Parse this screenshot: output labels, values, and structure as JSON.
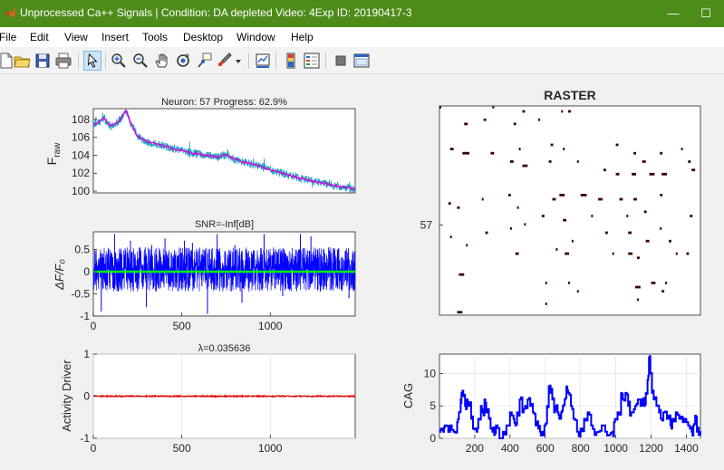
{
  "window": {
    "title": "Unprocessed Ca++ Signals | Condition: DA depleted Video: 4Exp ID: 20190417-3",
    "controls": {
      "minimize": "—",
      "maximize": "☐",
      "close": "✕"
    }
  },
  "menu": {
    "items": [
      "File",
      "Edit",
      "View",
      "Insert",
      "Tools",
      "Desktop",
      "Window",
      "Help"
    ]
  },
  "toolbar": {
    "buttons": [
      "new-figure-icon",
      "open-file-icon",
      "save-icon",
      "print-icon",
      "pointer-icon",
      "zoom-in-icon",
      "zoom-out-icon",
      "pan-icon",
      "rotate-3d-icon",
      "data-cursor-icon",
      "brush-icon",
      "brush-dropdown-icon",
      "link-plot-icon",
      "colorbar-icon",
      "legend-icon",
      "hide-plot-tools-icon",
      "show-plot-tools-icon"
    ]
  },
  "colors": {
    "titlebar": "#4d8c19",
    "raw_trace": "#1f9fbf",
    "fit_trace": "#e000e0",
    "dff_trace": "#0000ff",
    "baseline": "#00ff00",
    "driver": "#ff0000",
    "cag": "#0000ff",
    "raster_mark": "#3b0000"
  },
  "chart_data": [
    {
      "type": "line",
      "title": "Neuron: 57 Progress: 62.9%",
      "ylabel": "F_raw",
      "ylim": [
        99.8,
        109.2
      ],
      "xlim": [
        0,
        1480
      ],
      "yticks": [
        100,
        102,
        104,
        106,
        108
      ],
      "series": [
        {
          "values": [
            [
              0,
              107.4
            ],
            [
              60,
              108.1
            ],
            [
              100,
              107.2
            ],
            [
              150,
              107.9
            ],
            [
              185,
              109.0
            ],
            [
              215,
              107.4
            ],
            [
              250,
              106.1
            ],
            [
              300,
              105.5
            ],
            [
              400,
              105.0
            ],
            [
              500,
              104.5
            ],
            [
              600,
              104.1
            ],
            [
              700,
              103.8
            ],
            [
              750,
              104.1
            ],
            [
              800,
              103.5
            ],
            [
              900,
              103.0
            ],
            [
              1000,
              102.4
            ],
            [
              1100,
              101.8
            ],
            [
              1200,
              101.3
            ],
            [
              1300,
              100.9
            ],
            [
              1400,
              100.5
            ],
            [
              1480,
              100.2
            ]
          ]
        }
      ]
    },
    {
      "type": "line",
      "title": "SNR=-Inf[dB]",
      "ylabel": "ΔF/F₀",
      "ylim": [
        -1.0,
        0.9
      ],
      "xlim": [
        0,
        1480
      ],
      "yticks": [
        0.5,
        0,
        -0.5,
        -1
      ],
      "ytick_labels": [
        "0.5",
        "0",
        "-0.5",
        "-1"
      ],
      "xticks": [
        0,
        500,
        1000
      ],
      "noise_range": [
        -0.45,
        0.55
      ],
      "spikes": [
        [
          45,
          -0.9
        ],
        [
          120,
          0.85
        ],
        [
          210,
          0.7
        ],
        [
          300,
          -0.8
        ],
        [
          330,
          0.6
        ],
        [
          405,
          0.75
        ],
        [
          515,
          0.7
        ],
        [
          560,
          0.65
        ],
        [
          620,
          0.5
        ],
        [
          645,
          -0.95
        ],
        [
          700,
          0.85
        ],
        [
          800,
          0.6
        ],
        [
          840,
          -0.7
        ],
        [
          965,
          0.85
        ],
        [
          1070,
          -0.55
        ],
        [
          1170,
          0.85
        ],
        [
          1230,
          0.8
        ],
        [
          1330,
          0.55
        ],
        [
          1380,
          0.5
        ],
        [
          1445,
          -0.6
        ]
      ]
    },
    {
      "type": "line",
      "title": "λ=0.035636",
      "ylabel": "Activity Driver",
      "ylim": [
        -1,
        1
      ],
      "xlim": [
        0,
        1480
      ],
      "yticks": [
        1,
        0,
        -1
      ],
      "xticks": [
        0,
        500,
        1000
      ],
      "series": [
        {
          "values": [
            [
              0,
              0
            ],
            [
              1480,
              0
            ]
          ]
        }
      ]
    },
    {
      "type": "scatter",
      "title": "RASTER",
      "ytick_labels": [
        "57"
      ],
      "xlim": [
        0,
        1480
      ],
      "rows": 50,
      "marks": [
        [
          0,
          0,
          10
        ],
        [
          300,
          0,
          10
        ],
        [
          470,
          1,
          15
        ],
        [
          690,
          1,
          10
        ],
        [
          730,
          1,
          15
        ],
        [
          140,
          4,
          20
        ],
        [
          250,
          3,
          15
        ],
        [
          420,
          4,
          15
        ],
        [
          560,
          3,
          10
        ],
        [
          60,
          10,
          20
        ],
        [
          130,
          11,
          40
        ],
        [
          290,
          11,
          20
        ],
        [
          450,
          10,
          10
        ],
        [
          630,
          9,
          15
        ],
        [
          700,
          10,
          10
        ],
        [
          1000,
          9,
          15
        ],
        [
          1100,
          11,
          15
        ],
        [
          1250,
          11,
          15
        ],
        [
          1370,
          10,
          10
        ],
        [
          400,
          13,
          20
        ],
        [
          470,
          14,
          30
        ],
        [
          620,
          13,
          15
        ],
        [
          780,
          13,
          10
        ],
        [
          1150,
          13,
          20
        ],
        [
          1410,
          13,
          15
        ],
        [
          930,
          15,
          15
        ],
        [
          1000,
          16,
          20
        ],
        [
          1090,
          16,
          25
        ],
        [
          1190,
          16,
          30
        ],
        [
          1260,
          16,
          30
        ],
        [
          1430,
          15,
          20
        ],
        [
          50,
          23,
          15
        ],
        [
          100,
          24,
          15
        ],
        [
          390,
          21,
          15
        ],
        [
          640,
          22,
          20
        ],
        [
          680,
          21,
          30
        ],
        [
          800,
          21,
          35
        ],
        [
          900,
          22,
          25
        ],
        [
          1020,
          22,
          20
        ],
        [
          1100,
          22,
          20
        ],
        [
          240,
          22,
          10
        ],
        [
          1250,
          21,
          15
        ],
        [
          440,
          24,
          10
        ],
        [
          580,
          26,
          15
        ],
        [
          700,
          27,
          20
        ],
        [
          860,
          26,
          10
        ],
        [
          1060,
          26,
          10
        ],
        [
          1160,
          25,
          15
        ],
        [
          1420,
          26,
          15
        ],
        [
          60,
          31,
          10
        ],
        [
          150,
          33,
          10
        ],
        [
          260,
          30,
          15
        ],
        [
          400,
          29,
          10
        ],
        [
          480,
          28,
          10
        ],
        [
          750,
          32,
          10
        ],
        [
          940,
          30,
          15
        ],
        [
          1070,
          30,
          20
        ],
        [
          1170,
          32,
          20
        ],
        [
          1300,
          32,
          15
        ],
        [
          1250,
          29,
          10
        ],
        [
          430,
          35,
          20
        ],
        [
          660,
          34,
          10
        ],
        [
          710,
          35,
          25
        ],
        [
          980,
          35,
          10
        ],
        [
          1070,
          35,
          25
        ],
        [
          1400,
          35,
          15
        ],
        [
          1120,
          36,
          15
        ],
        [
          1340,
          35,
          10
        ],
        [
          110,
          40,
          30
        ],
        [
          600,
          42,
          10
        ],
        [
          730,
          42,
          10
        ],
        [
          1110,
          43,
          30
        ],
        [
          1200,
          42,
          25
        ],
        [
          1260,
          44,
          15
        ],
        [
          1280,
          42,
          10
        ],
        [
          100,
          49,
          30
        ],
        [
          600,
          47,
          10
        ],
        [
          780,
          44,
          10
        ],
        [
          1120,
          46,
          10
        ]
      ],
      "mark_x_scale": "frames"
    },
    {
      "type": "line",
      "title": "",
      "ylabel": "CAG",
      "ylim": [
        0,
        13
      ],
      "xlim": [
        0,
        1480
      ],
      "yticks": [
        0,
        5,
        10
      ],
      "xticks": [
        200,
        400,
        600,
        800,
        1000,
        1200,
        1400
      ],
      "series": [
        {
          "values": [
            [
              0,
              1
            ],
            [
              10,
              1.5
            ],
            [
              20,
              1
            ],
            [
              30,
              2
            ],
            [
              50,
              1
            ],
            [
              60,
              2
            ],
            [
              80,
              1
            ],
            [
              100,
              2.5
            ],
            [
              110,
              4
            ],
            [
              120,
              6
            ],
            [
              125,
              7
            ],
            [
              135,
              6.5
            ],
            [
              145,
              5
            ],
            [
              155,
              6
            ],
            [
              165,
              5
            ],
            [
              180,
              3
            ],
            [
              190,
              1.5
            ],
            [
              200,
              1.5
            ],
            [
              210,
              1
            ],
            [
              220,
              3
            ],
            [
              235,
              5
            ],
            [
              245,
              4
            ],
            [
              255,
              6
            ],
            [
              265,
              4
            ],
            [
              280,
              3
            ],
            [
              290,
              1.5
            ],
            [
              300,
              1
            ],
            [
              310,
              0.5
            ],
            [
              320,
              2
            ],
            [
              340,
              0
            ],
            [
              360,
              1
            ],
            [
              380,
              2
            ],
            [
              400,
              4
            ],
            [
              420,
              3
            ],
            [
              430,
              2
            ],
            [
              440,
              4
            ],
            [
              455,
              6
            ],
            [
              470,
              4
            ],
            [
              485,
              5
            ],
            [
              500,
              6
            ],
            [
              515,
              5
            ],
            [
              530,
              4
            ],
            [
              545,
              2
            ],
            [
              560,
              1.5
            ],
            [
              570,
              1
            ],
            [
              580,
              1
            ],
            [
              595,
              2
            ],
            [
              610,
              5
            ],
            [
              620,
              8
            ],
            [
              630,
              7
            ],
            [
              640,
              6
            ],
            [
              650,
              4
            ],
            [
              660,
              5
            ],
            [
              670,
              4
            ],
            [
              680,
              3
            ],
            [
              690,
              4
            ],
            [
              700,
              5
            ],
            [
              710,
              6
            ],
            [
              720,
              8
            ],
            [
              730,
              7
            ],
            [
              745,
              5
            ],
            [
              760,
              3
            ],
            [
              780,
              1
            ],
            [
              800,
              1.5
            ],
            [
              820,
              3
            ],
            [
              840,
              4
            ],
            [
              860,
              2
            ],
            [
              880,
              0.5
            ],
            [
              900,
              1
            ],
            [
              920,
              2
            ],
            [
              940,
              1
            ],
            [
              960,
              0.5
            ],
            [
              980,
              1
            ],
            [
              990,
              2.5
            ],
            [
              1000,
              3
            ],
            [
              1010,
              4
            ],
            [
              1030,
              7
            ],
            [
              1040,
              6
            ],
            [
              1055,
              7
            ],
            [
              1070,
              5
            ],
            [
              1080,
              3.5
            ],
            [
              1095,
              4
            ],
            [
              1110,
              5
            ],
            [
              1125,
              6
            ],
            [
              1140,
              5
            ],
            [
              1150,
              6
            ],
            [
              1160,
              5
            ],
            [
              1170,
              7
            ],
            [
              1180,
              9
            ],
            [
              1188,
              12.5
            ],
            [
              1196,
              10
            ],
            [
              1205,
              7
            ],
            [
              1215,
              6
            ],
            [
              1230,
              5
            ],
            [
              1245,
              4
            ],
            [
              1255,
              3
            ],
            [
              1270,
              4
            ],
            [
              1290,
              3
            ],
            [
              1310,
              2
            ],
            [
              1320,
              3
            ],
            [
              1340,
              4
            ],
            [
              1360,
              3
            ],
            [
              1380,
              2.5
            ],
            [
              1400,
              2.5
            ],
            [
              1420,
              1.5
            ],
            [
              1430,
              1
            ],
            [
              1440,
              2
            ],
            [
              1450,
              3.5
            ],
            [
              1460,
              1
            ],
            [
              1470,
              0.5
            ],
            [
              1480,
              0.5
            ]
          ]
        }
      ]
    }
  ]
}
